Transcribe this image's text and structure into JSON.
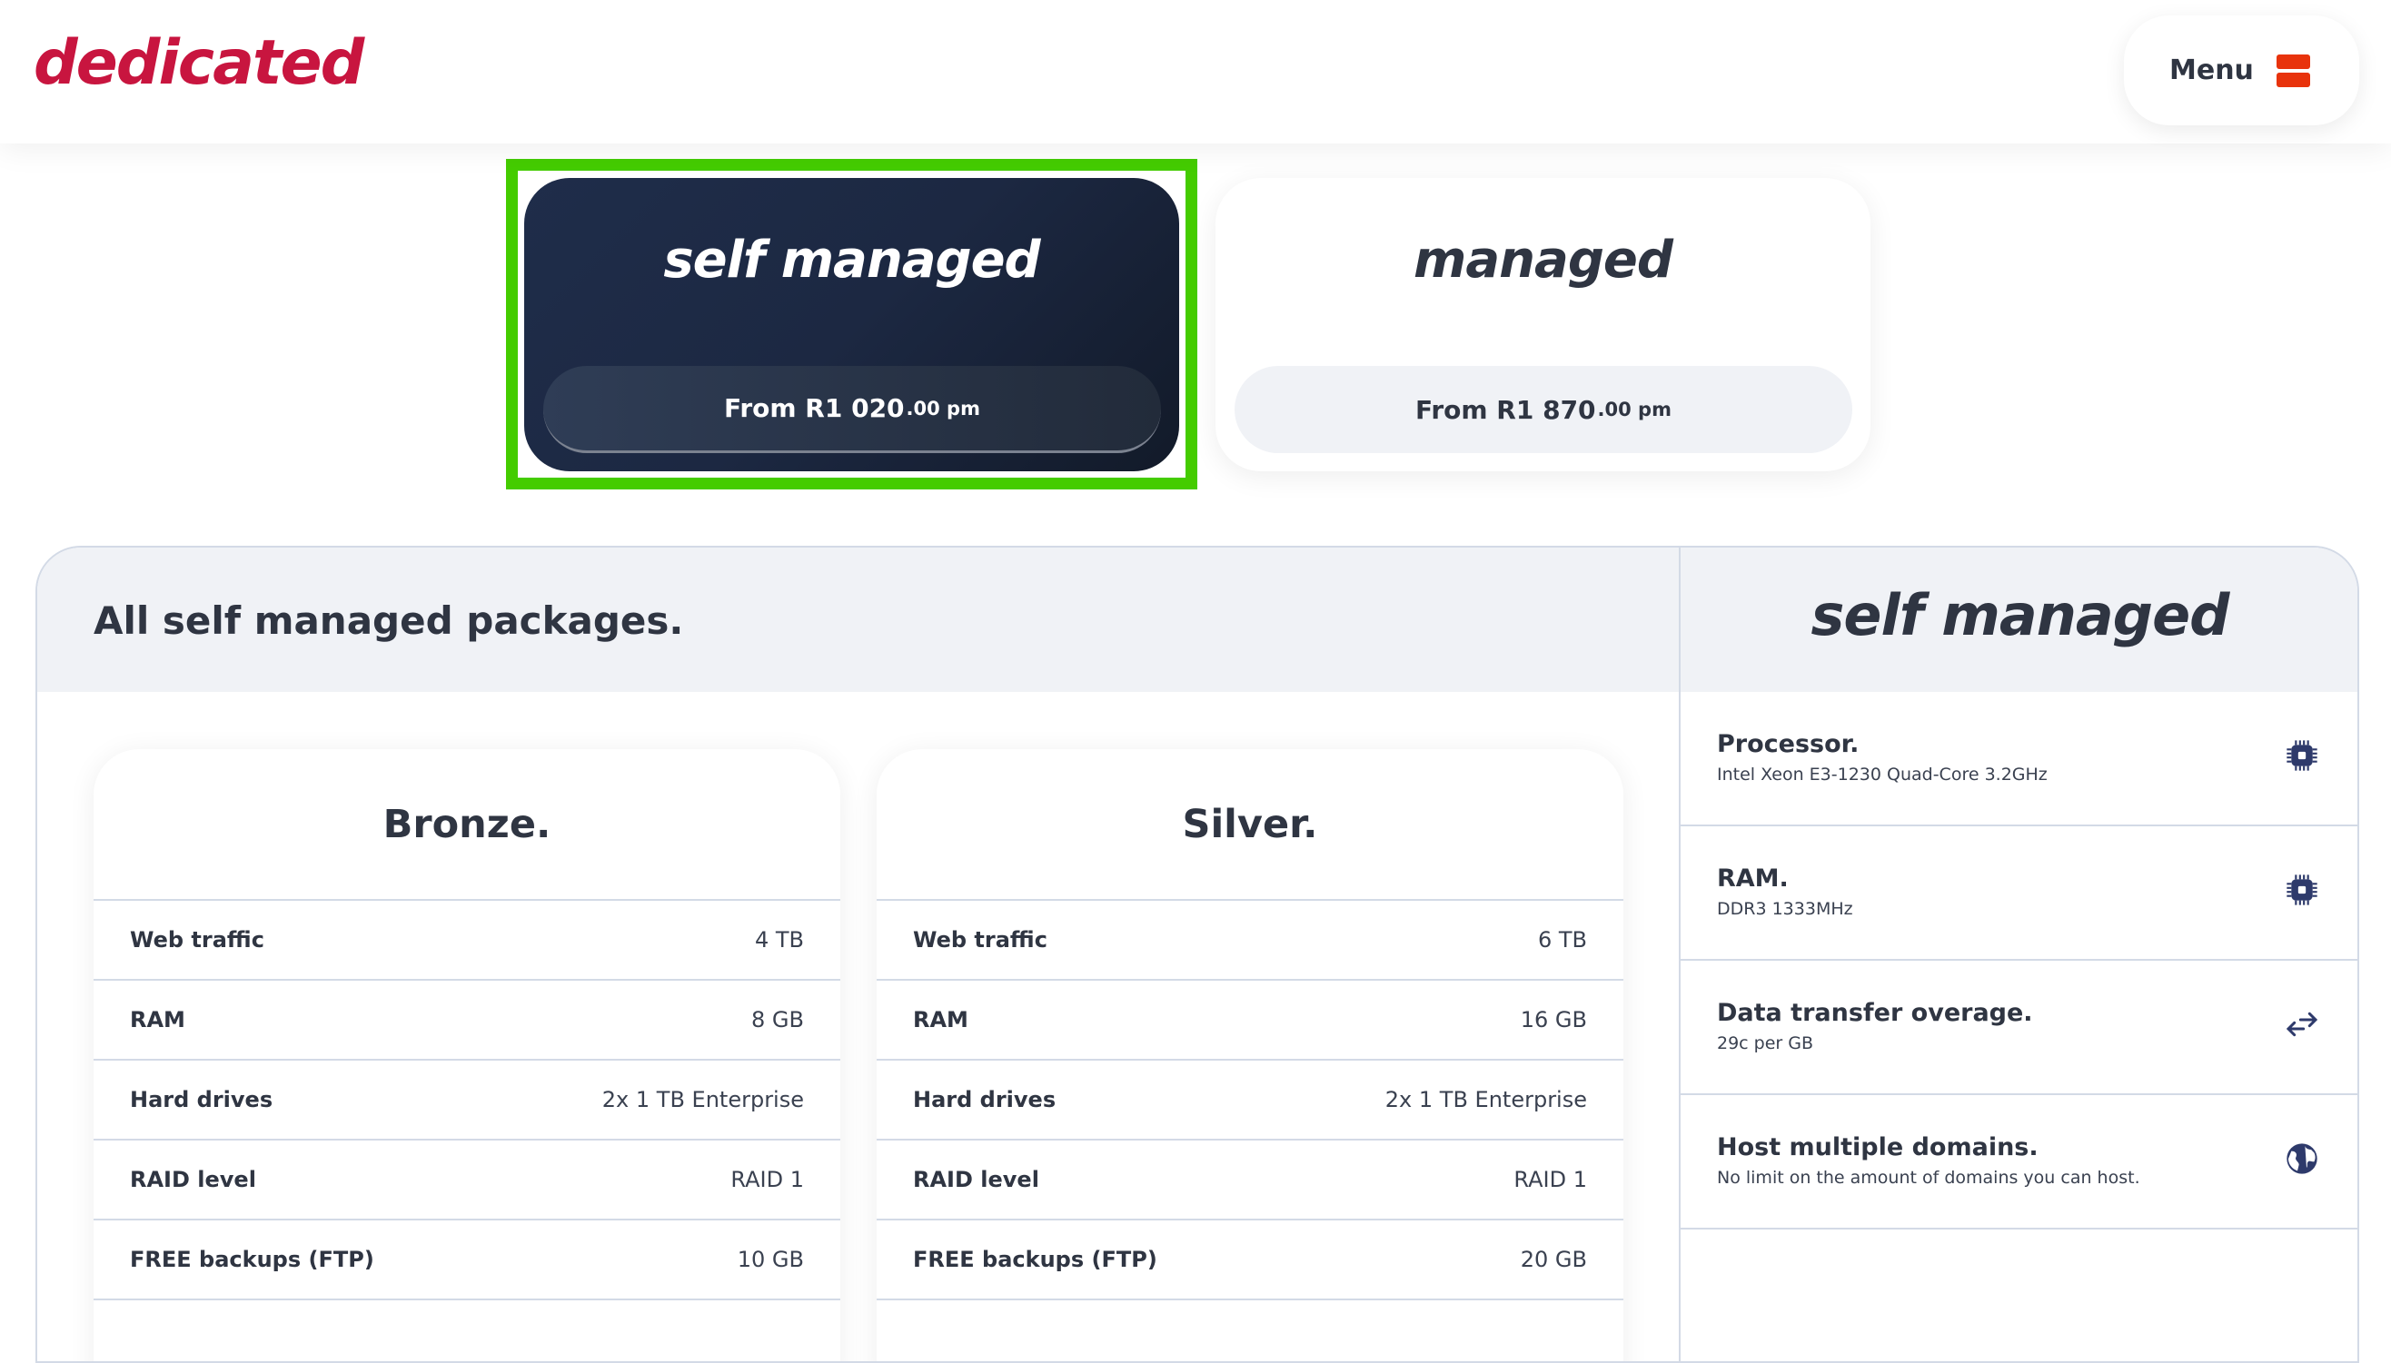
{
  "header": {
    "logo": "dedicated",
    "menu_label": "Menu",
    "menu_icon": "menu-icon",
    "menu_icon_color": "#e8330c",
    "logo_color": "#c8153f"
  },
  "tabs": [
    {
      "title": "self managed",
      "price_prefix": "From R1 020",
      "price_cents": ".00 pm",
      "selected": true
    },
    {
      "title": "managed",
      "price_prefix": "From R1 870",
      "price_cents": ".00 pm",
      "selected": false
    }
  ],
  "highlight_color": "#44cc00",
  "panel": {
    "title": "All self managed packages.",
    "side_title": "self managed"
  },
  "packages": [
    {
      "name": "Bronze.",
      "rows": [
        {
          "k": "Web traffic",
          "v": "4 TB"
        },
        {
          "k": "RAM",
          "v": "8 GB"
        },
        {
          "k": "Hard drives",
          "v": "2x 1 TB Enterprise"
        },
        {
          "k": "RAID level",
          "v": "RAID 1"
        },
        {
          "k": "FREE backups (FTP)",
          "v": "10 GB"
        }
      ]
    },
    {
      "name": "Silver.",
      "rows": [
        {
          "k": "Web traffic",
          "v": "6 TB"
        },
        {
          "k": "RAM",
          "v": "16 GB"
        },
        {
          "k": "Hard drives",
          "v": "2x 1 TB Enterprise"
        },
        {
          "k": "RAID level",
          "v": "RAID 1"
        },
        {
          "k": "FREE backups (FTP)",
          "v": "20 GB"
        }
      ]
    }
  ],
  "features": [
    {
      "title": "Processor.",
      "sub": "Intel Xeon E3-1230 Quad-Core 3.2GHz",
      "icon": "chip-icon"
    },
    {
      "title": "RAM.",
      "sub": "DDR3 1333MHz",
      "icon": "chip-icon"
    },
    {
      "title": "Data transfer overage.",
      "sub": "29c per GB",
      "icon": "arrows-exchange-icon"
    },
    {
      "title": "Host multiple domains.",
      "sub": "No limit on the amount of domains you can host.",
      "icon": "globe-icon"
    }
  ]
}
